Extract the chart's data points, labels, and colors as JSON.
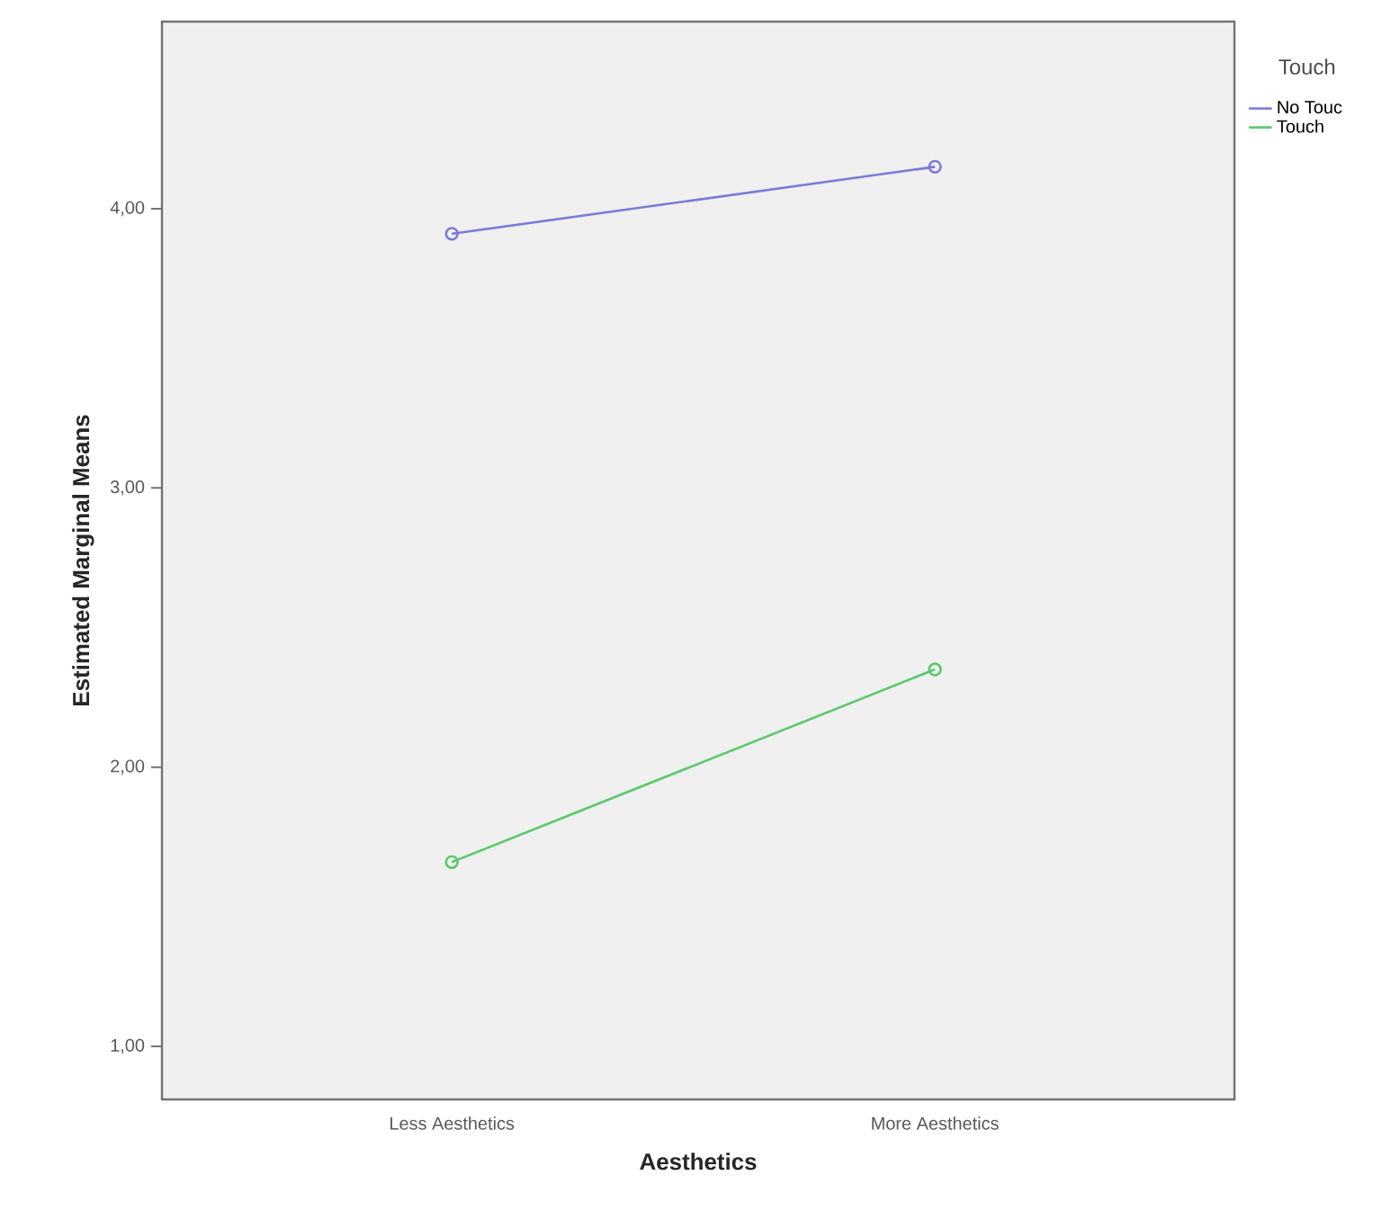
{
  "chart_data": {
    "type": "line",
    "xlabel": "Aesthetics",
    "ylabel": "Estimated Marginal Means",
    "legend_title": "Touch",
    "categories": [
      "Less Aesthetics",
      "More Aesthetics"
    ],
    "series": [
      {
        "name": "No Touc",
        "color": "#7b7bd6",
        "values": [
          3.91,
          4.15
        ]
      },
      {
        "name": "Touch",
        "color": "#5cc86c",
        "values": [
          1.66,
          2.35
        ]
      }
    ],
    "ylim": [
      0.81,
      4.67
    ],
    "yticks": [
      {
        "value": 1,
        "label": "1,00"
      },
      {
        "value": 2,
        "label": "2,00"
      },
      {
        "value": 3,
        "label": "3,00"
      },
      {
        "value": 4,
        "label": "4,00"
      }
    ],
    "legend": "top right",
    "marker": "circle",
    "line_style": "solid",
    "grid": false
  }
}
